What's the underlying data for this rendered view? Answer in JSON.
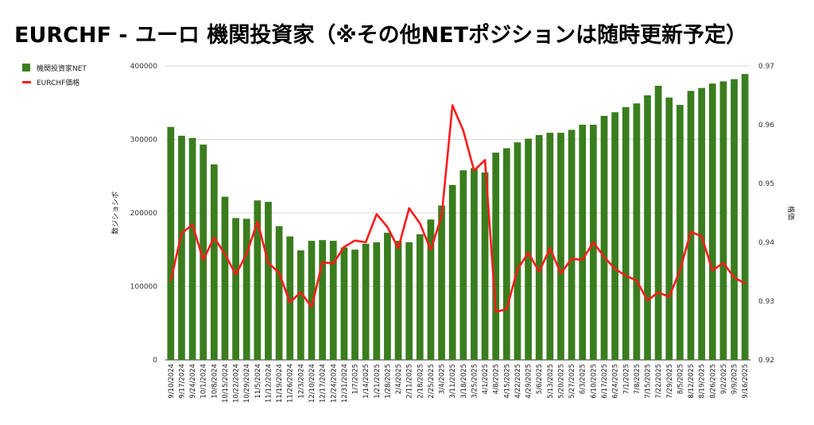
{
  "title": "EURCHF - ユーロ 機関投資家（※その他NETポジションは随時更新予定）",
  "legend": [
    "機関投資家NET",
    "EURCHF価格"
  ],
  "colors": {
    "bar": "#3a7d1e",
    "line": "#ff1a1a",
    "grid": "#d9d9d9",
    "text": "#333333"
  },
  "chart_data": {
    "type": "bar+line",
    "title": "EURCHF - ユーロ 機関投資家（※その他NETポジションは随時更新予定）",
    "ylabel_left": "数ジショシボ",
    "ylabel_right": "格価",
    "ylim_left": [
      0,
      400000
    ],
    "ylim_right": [
      0.92,
      0.97
    ],
    "left_ticks": [
      "0",
      "100000",
      "200000",
      "300000",
      "400000"
    ],
    "right_ticks": [
      "0.92",
      "0.93",
      "0.94",
      "0.95",
      "0.96",
      "0.97"
    ],
    "x_ticks": [
      "9/10/2024",
      "9/17/2024",
      "9/24/2024",
      "10/1/2024",
      "10/8/2024",
      "10/15/2024",
      "10/22/2024",
      "10/29/2024",
      "11/5/2024",
      "11/12/2024",
      "11/19/2024",
      "11/26/2024",
      "12/3/2024",
      "12/10/2024",
      "12/17/2024",
      "12/24/2024",
      "12/31/2024",
      "1/7/2025",
      "1/14/2025",
      "1/21/2025",
      "1/28/2025",
      "2/4/2025",
      "2/11/2025",
      "2/18/2025",
      "2/25/2025",
      "3/4/2025",
      "3/11/2025",
      "3/18/2025",
      "3/25/2025",
      "4/1/2025",
      "4/8/2025",
      "4/15/2025",
      "4/22/2025",
      "4/29/2025",
      "5/6/2025",
      "5/13/2025",
      "5/20/2025",
      "5/27/2025",
      "6/3/2025",
      "6/10/2025",
      "6/17/2025",
      "6/24/2025",
      "7/1/2025",
      "7/8/2025",
      "7/15/2025",
      "7/22/2025",
      "7/29/2025",
      "8/5/2025",
      "8/12/2025",
      "8/19/2025",
      "8/26/2025",
      "9/2/2025",
      "9/9/2025",
      "9/16/2025"
    ],
    "series": [
      {
        "name": "機関投資家NET",
        "type": "bar",
        "values": [
          317000,
          305000,
          302000,
          293000,
          266000,
          222000,
          193000,
          192000,
          217000,
          215000,
          182000,
          168000,
          149000,
          162000,
          163000,
          162000,
          153000,
          150000,
          158000,
          160000,
          173000,
          162000,
          160000,
          171000,
          191000,
          210000,
          238000,
          258000,
          261000,
          255000,
          282000,
          288000,
          296000,
          301000,
          306000,
          309000,
          309000,
          313000,
          320000,
          320000,
          332000,
          337000,
          344000,
          349000,
          360000,
          373000,
          357000,
          347000,
          366000,
          370000,
          376000,
          379000,
          382000,
          389000
        ]
      },
      {
        "name": "EURCHF価格",
        "type": "line",
        "values": [
          0.9335,
          0.9415,
          0.943,
          0.937,
          0.9408,
          0.938,
          0.9345,
          0.938,
          0.9435,
          0.9365,
          0.9348,
          0.9298,
          0.9315,
          0.929,
          0.9366,
          0.9364,
          0.9392,
          0.9403,
          0.94,
          0.9448,
          0.9426,
          0.939,
          0.9458,
          0.9432,
          0.9387,
          0.9445,
          0.9633,
          0.959,
          0.9522,
          0.954,
          0.9282,
          0.9286,
          0.9354,
          0.9382,
          0.935,
          0.939,
          0.9347,
          0.9372,
          0.937,
          0.94,
          0.9375,
          0.9355,
          0.9343,
          0.9335,
          0.9301,
          0.9315,
          0.9307,
          0.9352,
          0.9418,
          0.941,
          0.9352,
          0.9365,
          0.934,
          0.933
        ]
      }
    ],
    "grid": true,
    "legend_position": "top-left"
  }
}
